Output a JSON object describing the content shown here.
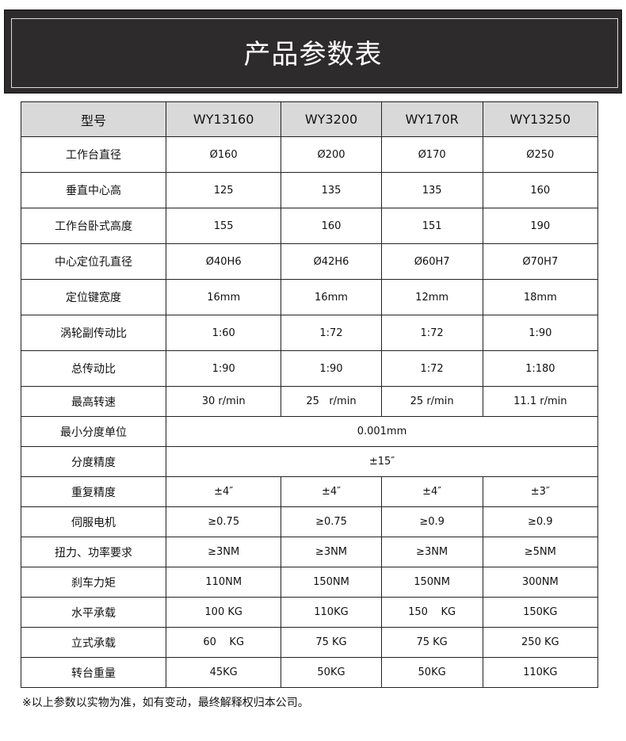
{
  "title": "产品参数表",
  "header": [
    "型号",
    "WY13160",
    "WY3200",
    "WY170R",
    "WY13250"
  ],
  "rows": [
    {
      "label": "工作台直径",
      "values": [
        "Ø160",
        "Ø200",
        "Ø170",
        "Ø250"
      ]
    },
    {
      "label": "垂直中心高",
      "values": [
        "125",
        "135",
        "135",
        "160"
      ]
    },
    {
      "label": "工作台卧式高度",
      "values": [
        "155",
        "160",
        "151",
        "190"
      ]
    },
    {
      "label": "中心定位孔直径",
      "values": [
        "Ø40H6",
        "Ø42H6",
        "Ø60H7",
        "Ø70H7"
      ]
    },
    {
      "label": "定位键宽度",
      "values": [
        "16mm",
        "16mm",
        "12mm",
        "18mm"
      ]
    },
    {
      "label": "涡轮副传动比",
      "values": [
        "1:60",
        "1:72",
        "1:72",
        "1:90"
      ]
    },
    {
      "label": "总传动比",
      "values": [
        "1:90",
        "1:90",
        "1:72",
        "1:180"
      ]
    },
    {
      "label": "最高转速",
      "values": [
        "30 r/min",
        "25   r/min",
        "25 r/min",
        "11.1 r/min"
      ]
    },
    {
      "label": "最小分度单位",
      "merged": "0.001mm"
    },
    {
      "label": "分度精度",
      "merged": "±15″"
    },
    {
      "label": "重复精度",
      "values": [
        "±4″",
        "±4″",
        "±4″",
        "±3″"
      ]
    },
    {
      "label": "伺服电机",
      "values": [
        "≥0.75",
        "≥0.75",
        "≥0.9",
        "≥0.9"
      ]
    },
    {
      "label": "扭力、功率要求",
      "values": [
        "≥3NM",
        "≥3NM",
        "≥3NM",
        "≥5NM"
      ]
    },
    {
      "label": "刹车力矩",
      "values": [
        "110NM",
        "150NM",
        "150NM",
        "300NM"
      ]
    },
    {
      "label": "水平承载",
      "values": [
        "100 KG",
        "110KG",
        "150    KG",
        "150KG"
      ]
    },
    {
      "label": "立式承载",
      "values": [
        "60    KG",
        "75 KG",
        "75 KG",
        "250 KG"
      ]
    },
    {
      "label": "转台重量",
      "values": [
        "45KG",
        "50KG",
        "50KG",
        "110KG"
      ]
    }
  ],
  "note": "※以上参数以实物为准，如有变动，最终解释权归本公司。"
}
